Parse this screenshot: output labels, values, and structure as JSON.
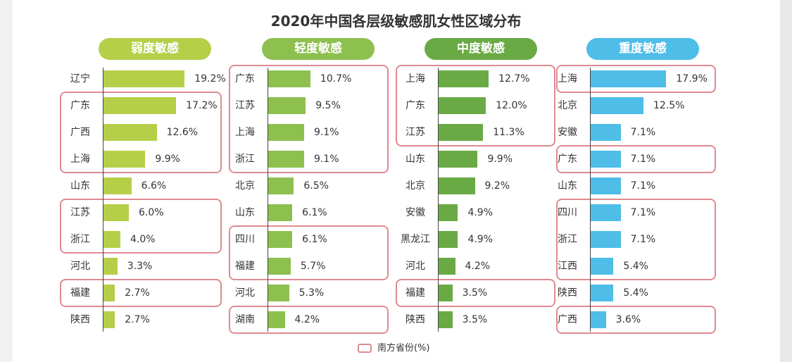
{
  "chart_data": {
    "type": "bar",
    "title": "2020年中国各层级敏感肌女性区域分布",
    "unit": "%",
    "legend": "南方省份(%)",
    "panels": [
      {
        "name": "弱度敏感",
        "color": "#b5cf49",
        "categories": [
          "辽宁",
          "广东",
          "广西",
          "上海",
          "山东",
          "江苏",
          "浙江",
          "河北",
          "福建",
          "陕西"
        ],
        "values": [
          19.2,
          17.2,
          12.6,
          9.9,
          6.6,
          6.0,
          4.0,
          3.3,
          2.7,
          2.7
        ],
        "highlight_groups": [
          [
            1,
            3
          ],
          [
            5,
            6
          ],
          [
            8,
            8
          ]
        ]
      },
      {
        "name": "轻度敏感",
        "color": "#8dc04f",
        "categories": [
          "广东",
          "江苏",
          "上海",
          "浙江",
          "北京",
          "山东",
          "四川",
          "福建",
          "河北",
          "湖南"
        ],
        "values": [
          10.7,
          9.5,
          9.1,
          9.1,
          6.5,
          6.1,
          6.1,
          5.7,
          5.3,
          4.2
        ],
        "highlight_groups": [
          [
            0,
            3
          ],
          [
            6,
            7
          ],
          [
            9,
            9
          ]
        ]
      },
      {
        "name": "中度敏感",
        "color": "#6aaa45",
        "categories": [
          "上海",
          "广东",
          "江苏",
          "山东",
          "北京",
          "安徽",
          "黑龙江",
          "河北",
          "福建",
          "陕西"
        ],
        "values": [
          12.7,
          12.0,
          11.3,
          9.9,
          9.2,
          4.9,
          4.9,
          4.2,
          3.5,
          3.5
        ],
        "highlight_groups": [
          [
            0,
            2
          ],
          [
            8,
            8
          ]
        ]
      },
      {
        "name": "重度敏感",
        "color": "#4ebde8",
        "categories": [
          "上海",
          "北京",
          "安徽",
          "广东",
          "山东",
          "四川",
          "浙江",
          "江西",
          "陕西",
          "广西"
        ],
        "values": [
          17.9,
          12.5,
          7.1,
          7.1,
          7.1,
          7.1,
          7.1,
          5.4,
          5.4,
          3.6
        ],
        "highlight_groups": [
          [
            0,
            0
          ],
          [
            3,
            3
          ],
          [
            5,
            7
          ],
          [
            9,
            9
          ]
        ]
      }
    ]
  }
}
